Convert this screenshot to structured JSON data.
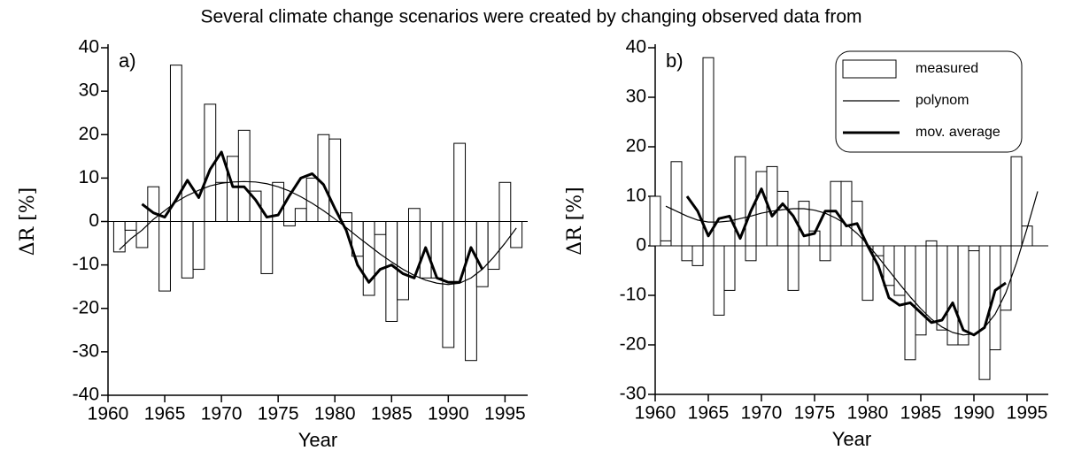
{
  "header": {
    "text": "Several climate change scenarios were created by changing observed data from"
  },
  "chart_data": [
    {
      "type": "bar-line",
      "label": "a)",
      "xlabel": "Year",
      "ylabel": "ΔR [%]",
      "xlim": [
        1960,
        1997
      ],
      "xticks": [
        1960,
        1965,
        1970,
        1975,
        1980,
        1985,
        1990,
        1995
      ],
      "ylim": [
        -40,
        40
      ],
      "yticks": [
        -40,
        -30,
        -20,
        -10,
        0,
        10,
        20,
        30,
        40
      ],
      "series": [
        {
          "name": "measured",
          "kind": "bar",
          "color": "#000000",
          "x": [
            1961,
            1962,
            1963,
            1964,
            1965,
            1966,
            1967,
            1968,
            1969,
            1970,
            1971,
            1972,
            1973,
            1974,
            1975,
            1976,
            1977,
            1978,
            1979,
            1980,
            1981,
            1982,
            1983,
            1984,
            1985,
            1986,
            1987,
            1988,
            1989,
            1990,
            1991,
            1992,
            1993,
            1994,
            1995,
            1996
          ],
          "values": [
            -7,
            -2,
            -6,
            8,
            -16,
            36,
            -13,
            -11,
            27,
            9,
            15,
            21,
            7,
            -12,
            9,
            -1,
            3,
            10,
            20,
            19,
            2,
            -8,
            -17,
            -3,
            -23,
            -18,
            3,
            -13,
            -13,
            -29,
            18,
            -32,
            -15,
            -11,
            9,
            -6
          ]
        },
        {
          "name": "polynom",
          "kind": "line",
          "color": "#000000",
          "line_width": 1.2,
          "x": [
            1961,
            1962,
            1963,
            1964,
            1965,
            1966,
            1967,
            1968,
            1969,
            1970,
            1971,
            1972,
            1973,
            1974,
            1975,
            1976,
            1977,
            1978,
            1979,
            1980,
            1981,
            1982,
            1983,
            1984,
            1985,
            1986,
            1987,
            1988,
            1989,
            1990,
            1991,
            1992,
            1993,
            1994,
            1995,
            1996
          ],
          "values": [
            -6.5,
            -4,
            -2,
            0.5,
            2.5,
            4.5,
            6,
            7.2,
            8.2,
            8.8,
            9.1,
            9.2,
            9.1,
            8.7,
            8,
            7,
            5.7,
            4.2,
            2.5,
            0.6,
            -1.4,
            -3.5,
            -5.5,
            -7.5,
            -9.3,
            -11,
            -12.4,
            -13.5,
            -14.2,
            -14.5,
            -14.2,
            -13,
            -11,
            -8.2,
            -5,
            -1.5
          ]
        },
        {
          "name": "mov. average",
          "kind": "line",
          "color": "#000000",
          "line_width": 3,
          "x": [
            1963,
            1964,
            1965,
            1966,
            1967,
            1968,
            1969,
            1970,
            1971,
            1972,
            1973,
            1974,
            1975,
            1976,
            1977,
            1978,
            1979,
            1980,
            1981,
            1982,
            1983,
            1984,
            1985,
            1986,
            1987,
            1988,
            1989,
            1990,
            1991,
            1992,
            1993
          ],
          "values": [
            4,
            2,
            1,
            5,
            9.5,
            5.5,
            12,
            16,
            8,
            8,
            5,
            1,
            1.5,
            6,
            10,
            11,
            8.5,
            3,
            -2,
            -10,
            -14,
            -11,
            -10,
            -12,
            -13,
            -6,
            -13,
            -14,
            -14,
            -6,
            -11
          ]
        }
      ]
    },
    {
      "type": "bar-line",
      "label": "b)",
      "xlabel": "Year",
      "ylabel": "ΔR [%]",
      "legend": "upper right",
      "xlim": [
        1960,
        1997
      ],
      "xticks": [
        1960,
        1965,
        1970,
        1975,
        1980,
        1985,
        1990,
        1995
      ],
      "ylim": [
        -30,
        40
      ],
      "yticks": [
        -30,
        -20,
        -10,
        0,
        10,
        20,
        30,
        40
      ],
      "series": [
        {
          "name": "measured",
          "kind": "bar",
          "color": "#000000",
          "x": [
            1960,
            1961,
            1962,
            1963,
            1964,
            1965,
            1966,
            1967,
            1968,
            1969,
            1970,
            1971,
            1972,
            1973,
            1974,
            1975,
            1976,
            1977,
            1978,
            1979,
            1980,
            1981,
            1982,
            1983,
            1984,
            1985,
            1986,
            1987,
            1988,
            1989,
            1990,
            1991,
            1992,
            1993,
            1994,
            1995
          ],
          "values": [
            10,
            1,
            17,
            -3,
            -4,
            38,
            -14,
            -9,
            18,
            -3,
            15,
            16,
            11,
            -9,
            9,
            3,
            -3,
            13,
            13,
            9,
            -11,
            -2,
            -8,
            -10,
            -23,
            -18,
            1,
            -17,
            -20,
            -20,
            -1,
            -27,
            -21,
            -13,
            18,
            4
          ]
        },
        {
          "name": "polynom",
          "kind": "line",
          "color": "#000000",
          "line_width": 1.2,
          "x": [
            1961,
            1962,
            1963,
            1964,
            1965,
            1966,
            1967,
            1968,
            1969,
            1970,
            1971,
            1972,
            1973,
            1974,
            1975,
            1976,
            1977,
            1978,
            1979,
            1980,
            1981,
            1982,
            1983,
            1984,
            1985,
            1986,
            1987,
            1988,
            1989,
            1990,
            1991,
            1992,
            1993,
            1994,
            1995,
            1996
          ],
          "values": [
            8,
            7,
            6,
            5.2,
            4.8,
            4.8,
            5,
            5.5,
            6,
            6.6,
            7,
            7.3,
            7.5,
            7.5,
            7.2,
            6.6,
            5.6,
            4.3,
            2.5,
            0.3,
            -2.3,
            -5,
            -7.7,
            -10.3,
            -12.7,
            -14.8,
            -16.4,
            -17.5,
            -18,
            -17.8,
            -16.5,
            -13.8,
            -9.5,
            -3.5,
            3.5,
            11
          ]
        },
        {
          "name": "mov. average",
          "kind": "line",
          "color": "#000000",
          "line_width": 3,
          "x": [
            1963,
            1964,
            1965,
            1966,
            1967,
            1968,
            1969,
            1970,
            1971,
            1972,
            1973,
            1974,
            1975,
            1976,
            1977,
            1978,
            1979,
            1980,
            1981,
            1982,
            1983,
            1984,
            1985,
            1986,
            1987,
            1988,
            1989,
            1990,
            1991,
            1992,
            1993
          ],
          "values": [
            10,
            7,
            2,
            5.5,
            6,
            1.5,
            7,
            11.5,
            6,
            8.5,
            6,
            2,
            2.5,
            7,
            7,
            4,
            4.5,
            0,
            -4,
            -10.5,
            -12,
            -11.5,
            -13.5,
            -15.5,
            -15,
            -11.5,
            -17,
            -18,
            -16.5,
            -9,
            -7.5
          ]
        }
      ]
    }
  ]
}
